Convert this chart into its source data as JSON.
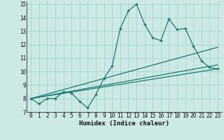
{
  "title": "",
  "xlabel": "Humidex (Indice chaleur)",
  "background_color": "#cce9e6",
  "line_color": "#1a7a6e",
  "grid_color": "#a8d8d4",
  "xlim": [
    -0.5,
    23.5
  ],
  "ylim": [
    7,
    15.2
  ],
  "xticks": [
    0,
    1,
    2,
    3,
    4,
    5,
    6,
    7,
    8,
    9,
    10,
    11,
    12,
    13,
    14,
    15,
    16,
    17,
    18,
    19,
    20,
    21,
    22,
    23
  ],
  "yticks": [
    7,
    8,
    9,
    10,
    11,
    12,
    13,
    14,
    15
  ],
  "line1_x": [
    0,
    1,
    2,
    3,
    4,
    5,
    6,
    7,
    8,
    9,
    10,
    11,
    12,
    13,
    14,
    15,
    16,
    17,
    18,
    19,
    20,
    21,
    22,
    23
  ],
  "line1_y": [
    8.0,
    7.6,
    8.0,
    8.0,
    8.5,
    8.4,
    7.8,
    7.3,
    8.3,
    9.5,
    10.4,
    13.2,
    14.5,
    15.0,
    13.5,
    12.5,
    12.3,
    13.9,
    13.1,
    13.2,
    11.9,
    10.8,
    10.3,
    10.2
  ],
  "line2_x": [
    0,
    23
  ],
  "line2_y": [
    8.0,
    11.8
  ],
  "line3_x": [
    0,
    23
  ],
  "line3_y": [
    8.0,
    10.5
  ],
  "line4_x": [
    0,
    23
  ],
  "line4_y": [
    8.0,
    10.2
  ]
}
